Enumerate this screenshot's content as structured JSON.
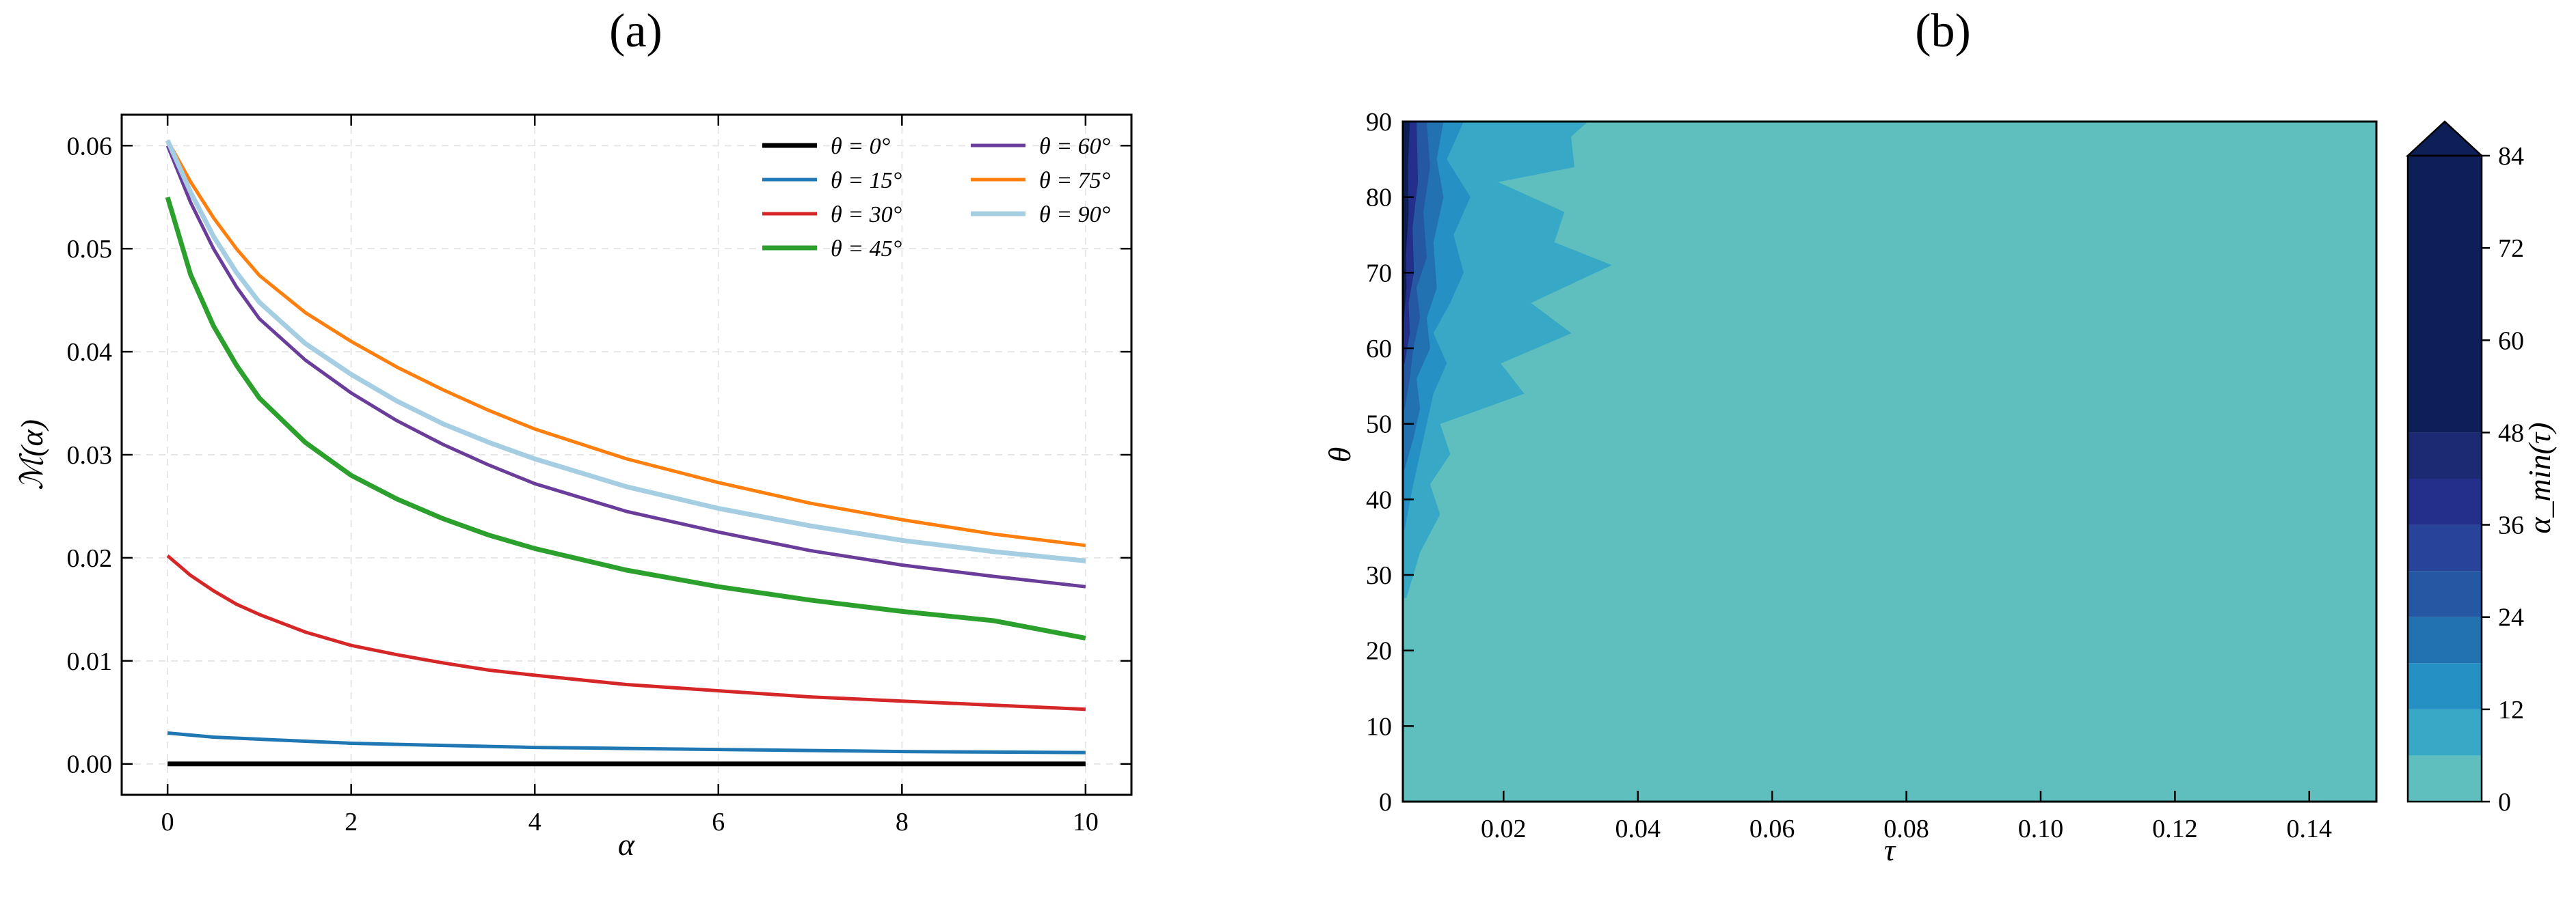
{
  "chart_data": [
    {
      "type": "line",
      "panel_label": "(a)",
      "xlabel": "α",
      "ylabel": "ℳ(α)",
      "xlim": [
        -0.5,
        10.5
      ],
      "ylim": [
        -0.003,
        0.063
      ],
      "xticks": [
        0,
        2,
        4,
        6,
        8,
        10
      ],
      "xtick_labels": [
        "0",
        "2",
        "4",
        "6",
        "8",
        "10"
      ],
      "yticks": [
        0.0,
        0.01,
        0.02,
        0.03,
        0.04,
        0.05,
        0.06
      ],
      "ytick_labels": [
        "0.00",
        "0.01",
        "0.02",
        "0.03",
        "0.04",
        "0.05",
        "0.06"
      ],
      "grid": true,
      "legend_position": "top-right",
      "x": [
        0,
        0.25,
        0.5,
        0.75,
        1,
        1.5,
        2,
        2.5,
        3,
        3.5,
        4,
        5,
        6,
        7,
        8,
        9,
        10
      ],
      "series": [
        {
          "name": "θ = 0°",
          "color": "#000000",
          "values": [
            0,
            0,
            0,
            0,
            0,
            0,
            0,
            0,
            0,
            0,
            0,
            0,
            0,
            0,
            0,
            0,
            0
          ]
        },
        {
          "name": "θ = 15°",
          "color": "#1f77b4",
          "values": [
            0.003,
            0.0028,
            0.0026,
            0.0025,
            0.0024,
            0.0022,
            0.002,
            0.0019,
            0.0018,
            0.0017,
            0.0016,
            0.0015,
            0.0014,
            0.0013,
            0.0012,
            0.00115,
            0.0011
          ]
        },
        {
          "name": "θ = 30°",
          "color": "#d62728",
          "values": [
            0.0202,
            0.0183,
            0.0168,
            0.0155,
            0.0145,
            0.0128,
            0.0115,
            0.0106,
            0.0098,
            0.0091,
            0.0086,
            0.0077,
            0.0071,
            0.0065,
            0.0061,
            0.0057,
            0.0053
          ]
        },
        {
          "name": "θ = 45°",
          "color": "#2ca02c",
          "values": [
            0.055,
            0.0475,
            0.0425,
            0.0387,
            0.0355,
            0.0312,
            0.028,
            0.0257,
            0.0238,
            0.0222,
            0.0209,
            0.0188,
            0.0172,
            0.0159,
            0.0148,
            0.0139,
            0.0122
          ]
        },
        {
          "name": "θ = 60°",
          "color": "#6a3d9a",
          "values": [
            0.06,
            0.0545,
            0.05,
            0.0463,
            0.0432,
            0.0392,
            0.036,
            0.0333,
            0.031,
            0.029,
            0.0272,
            0.0245,
            0.0225,
            0.0207,
            0.0193,
            0.0182,
            0.0172
          ]
        },
        {
          "name": "θ = 75°",
          "color": "#ff7f0e",
          "values": [
            0.0605,
            0.0565,
            0.053,
            0.05,
            0.0474,
            0.0438,
            0.041,
            0.0385,
            0.0363,
            0.0343,
            0.0325,
            0.0296,
            0.0273,
            0.0253,
            0.0237,
            0.0223,
            0.0212
          ]
        },
        {
          "name": "θ = 90°",
          "color": "#a6cee3",
          "values": [
            0.0605,
            0.0555,
            0.0512,
            0.0477,
            0.0448,
            0.0408,
            0.0378,
            0.0352,
            0.033,
            0.0312,
            0.0296,
            0.0269,
            0.0248,
            0.0231,
            0.0217,
            0.0206,
            0.0197
          ]
        }
      ]
    },
    {
      "type": "heatmap",
      "panel_label": "(b)",
      "xlabel": "τ",
      "ylabel": "θ",
      "xlim": [
        0.005,
        0.15
      ],
      "ylim": [
        0,
        90
      ],
      "xticks": [
        0.02,
        0.04,
        0.06,
        0.08,
        0.1,
        0.12,
        0.14
      ],
      "xtick_labels": [
        "0.02",
        "0.04",
        "0.06",
        "0.08",
        "0.10",
        "0.12",
        "0.14"
      ],
      "yticks": [
        0,
        10,
        20,
        30,
        40,
        50,
        60,
        70,
        80,
        90
      ],
      "ytick_labels": [
        "0",
        "10",
        "20",
        "30",
        "40",
        "50",
        "60",
        "70",
        "80",
        "90"
      ],
      "colorbar": {
        "label": "α_min(τ)",
        "ticks": [
          0,
          12,
          24,
          36,
          48,
          60,
          72,
          84
        ],
        "tick_labels": [
          "0",
          "12",
          "24",
          "36",
          "48",
          "60",
          "72",
          "84"
        ],
        "extend": "max",
        "levels": [
          0,
          6,
          12,
          18,
          24,
          30,
          36,
          42,
          48,
          84
        ],
        "colors": [
          "#5fbfbf",
          "#37a9c6",
          "#2490c4",
          "#2271b1",
          "#2558a3",
          "#27439a",
          "#232f8a",
          "#1c2a74",
          "#0d1f57"
        ],
        "extend_color": "#0d1f57"
      },
      "regions": [
        {
          "level": 1,
          "color": "#37a9c6",
          "boundary_tau": [
            0.0055,
            0.0075,
            0.0105,
            0.009,
            0.012,
            0.0105,
            0.023,
            0.0195,
            0.03,
            0.024,
            0.036,
            0.0275,
            0.029,
            0.019,
            0.0305,
            0.03,
            0.0325
          ],
          "boundary_theta": [
            27,
            33,
            38,
            42,
            46,
            50,
            54,
            58,
            62,
            66,
            71,
            74,
            78,
            82,
            84,
            88,
            90
          ]
        },
        {
          "level": 2,
          "color": "#2490c4",
          "boundary_tau": [
            0.0052,
            0.0065,
            0.0075,
            0.0085,
            0.0095,
            0.0115,
            0.0095,
            0.012,
            0.014,
            0.0125,
            0.015,
            0.0115,
            0.014
          ],
          "boundary_theta": [
            36,
            42,
            46,
            50,
            54,
            58,
            62,
            66,
            70,
            75,
            80,
            85,
            90
          ]
        },
        {
          "level": 3,
          "color": "#2271b1",
          "boundary_tau": [
            0.0052,
            0.0065,
            0.0075,
            0.007,
            0.009,
            0.0085,
            0.01,
            0.0095,
            0.011,
            0.01,
            0.011
          ],
          "boundary_theta": [
            44,
            48,
            52,
            56,
            60,
            64,
            68,
            74,
            80,
            85,
            90
          ]
        },
        {
          "level": 4,
          "color": "#2558a3",
          "boundary_tau": [
            0.0052,
            0.006,
            0.0065,
            0.0075,
            0.007,
            0.0085,
            0.008,
            0.009,
            0.0085
          ],
          "boundary_theta": [
            52,
            56,
            60,
            64,
            68,
            72,
            78,
            84,
            90
          ]
        },
        {
          "level": 5,
          "color": "#232f8a",
          "boundary_tau": [
            0.0052,
            0.006,
            0.0058,
            0.0066,
            0.0064,
            0.0072,
            0.007
          ],
          "boundary_theta": [
            58,
            62,
            66,
            70,
            76,
            82,
            90
          ]
        },
        {
          "level": 6,
          "color": "#0d1f57",
          "boundary_tau": [
            0.0051,
            0.0055,
            0.0054,
            0.0058,
            0.0057,
            0.006
          ],
          "boundary_theta": [
            64,
            68,
            72,
            78,
            84,
            90
          ]
        }
      ]
    }
  ]
}
